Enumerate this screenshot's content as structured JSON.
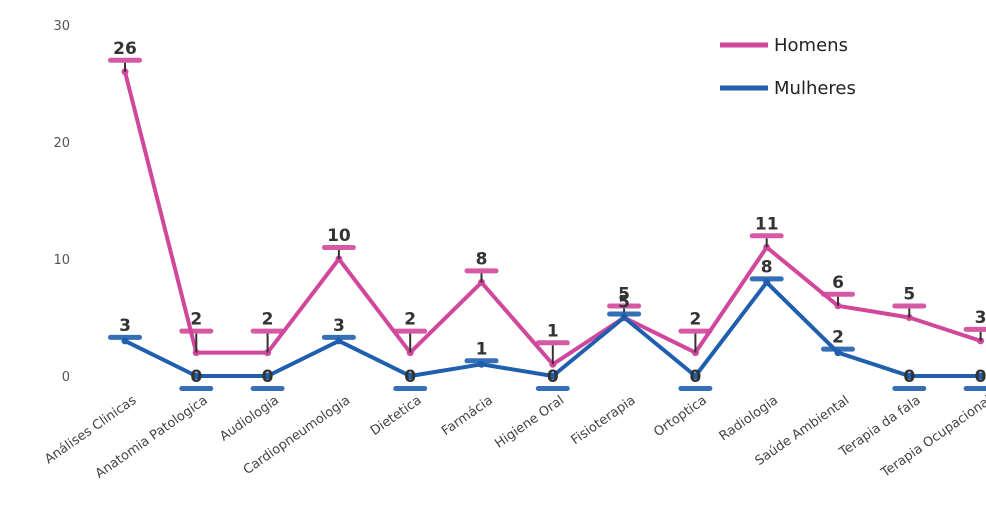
{
  "chart_data": {
    "type": "line",
    "categories": [
      "Análises Clinicas",
      "Anatomia Patologica",
      "Audiologia",
      "Cardiopneumologia",
      "Dietetica",
      "Farmácia",
      "Higiene Oral",
      "Fisioterapia",
      "Ortoptica",
      "Radiologia",
      "Saúde Ambiental",
      "Terapia da fala",
      "Terapia Ocupacional"
    ],
    "series": [
      {
        "name": "Homens",
        "color": "#d1479b",
        "values": [
          26,
          2,
          2,
          10,
          2,
          8,
          1,
          5,
          2,
          11,
          6,
          5,
          3
        ]
      },
      {
        "name": "Mulheres",
        "color": "#1f5fae",
        "values": [
          3,
          0,
          0,
          3,
          0,
          1,
          0,
          5,
          0,
          8,
          2,
          0,
          0
        ]
      }
    ],
    "y_ticks": [
      "0",
      "10",
      "20",
      "30"
    ],
    "ylim": [
      0,
      30
    ],
    "legend": "top-right",
    "grid": false
  }
}
